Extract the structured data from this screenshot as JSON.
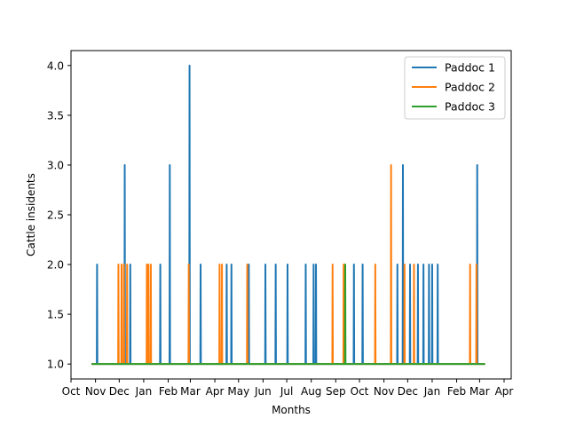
{
  "chart_data": {
    "type": "line",
    "title": "",
    "xlabel": "Months",
    "ylabel": "Cattle insidents",
    "ylim": [
      0.85,
      4.15
    ],
    "xlim": [
      "2018-10-01",
      "2020-04-10"
    ],
    "baseline": 1.0,
    "x_start": "2018-10-27",
    "x_end": "2020-03-08",
    "yticks": [
      1.0,
      1.5,
      2.0,
      2.5,
      3.0,
      3.5,
      4.0
    ],
    "ytick_labels": [
      "1.0",
      "1.5",
      "2.0",
      "2.5",
      "3.0",
      "3.5",
      "4.0"
    ],
    "xticks": [
      {
        "date": "2018-10-01",
        "label": "Oct"
      },
      {
        "date": "2018-11-01",
        "label": "Nov"
      },
      {
        "date": "2018-12-01",
        "label": "Dec"
      },
      {
        "date": "2019-01-01",
        "label": "Jan"
      },
      {
        "date": "2019-02-01",
        "label": "Feb"
      },
      {
        "date": "2019-03-01",
        "label": "Mar"
      },
      {
        "date": "2019-04-01",
        "label": "Apr"
      },
      {
        "date": "2019-05-01",
        "label": "May"
      },
      {
        "date": "2019-06-01",
        "label": "Jun"
      },
      {
        "date": "2019-07-01",
        "label": "Jul"
      },
      {
        "date": "2019-08-01",
        "label": "Aug"
      },
      {
        "date": "2019-09-01",
        "label": "Sep"
      },
      {
        "date": "2019-10-01",
        "label": "Oct"
      },
      {
        "date": "2019-11-01",
        "label": "Nov"
      },
      {
        "date": "2019-12-01",
        "label": "Dec"
      },
      {
        "date": "2020-01-01",
        "label": "Jan"
      },
      {
        "date": "2020-02-01",
        "label": "Feb"
      },
      {
        "date": "2020-03-01",
        "label": "Mar"
      },
      {
        "date": "2020-04-01",
        "label": "Apr"
      }
    ],
    "legend_position": "top-right",
    "grid": false,
    "series": [
      {
        "name": "Paddoc 1",
        "color": "#1f77b4",
        "peaks": [
          {
            "x": "2018-11-03",
            "y": 2
          },
          {
            "x": "2018-12-08",
            "y": 3
          },
          {
            "x": "2018-12-15",
            "y": 2
          },
          {
            "x": "2019-01-22",
            "y": 2
          },
          {
            "x": "2019-02-03",
            "y": 3
          },
          {
            "x": "2019-02-28",
            "y": 4
          },
          {
            "x": "2019-03-14",
            "y": 2
          },
          {
            "x": "2019-04-16",
            "y": 2
          },
          {
            "x": "2019-04-22",
            "y": 2
          },
          {
            "x": "2019-05-14",
            "y": 2
          },
          {
            "x": "2019-06-04",
            "y": 2
          },
          {
            "x": "2019-06-17",
            "y": 2
          },
          {
            "x": "2019-07-02",
            "y": 2
          },
          {
            "x": "2019-07-25",
            "y": 2
          },
          {
            "x": "2019-08-04",
            "y": 2
          },
          {
            "x": "2019-08-07",
            "y": 2
          },
          {
            "x": "2019-09-24",
            "y": 2
          },
          {
            "x": "2019-10-05",
            "y": 2
          },
          {
            "x": "2019-11-18",
            "y": 2
          },
          {
            "x": "2019-11-25",
            "y": 3
          },
          {
            "x": "2019-12-04",
            "y": 2
          },
          {
            "x": "2019-12-14",
            "y": 2
          },
          {
            "x": "2019-12-21",
            "y": 2
          },
          {
            "x": "2019-12-28",
            "y": 2
          },
          {
            "x": "2020-01-01",
            "y": 2
          },
          {
            "x": "2020-01-08",
            "y": 2
          },
          {
            "x": "2020-02-27",
            "y": 3
          }
        ]
      },
      {
        "name": "Paddoc 2",
        "color": "#ff7f0e",
        "peaks": [
          {
            "x": "2018-11-30",
            "y": 2
          },
          {
            "x": "2018-12-04",
            "y": 2
          },
          {
            "x": "2018-12-07",
            "y": 2
          },
          {
            "x": "2018-12-11",
            "y": 2
          },
          {
            "x": "2019-01-05",
            "y": 2
          },
          {
            "x": "2019-01-07",
            "y": 2
          },
          {
            "x": "2019-01-10",
            "y": 2
          },
          {
            "x": "2019-02-27",
            "y": 2
          },
          {
            "x": "2019-04-07",
            "y": 2
          },
          {
            "x": "2019-04-10",
            "y": 2
          },
          {
            "x": "2019-05-12",
            "y": 2
          },
          {
            "x": "2019-08-28",
            "y": 2
          },
          {
            "x": "2019-09-11",
            "y": 2
          },
          {
            "x": "2019-10-21",
            "y": 2
          },
          {
            "x": "2019-11-10",
            "y": 3
          },
          {
            "x": "2019-11-27",
            "y": 2
          },
          {
            "x": "2019-12-09",
            "y": 2
          },
          {
            "x": "2020-02-18",
            "y": 2
          },
          {
            "x": "2020-02-26",
            "y": 2
          }
        ]
      },
      {
        "name": "Paddoc 3",
        "color": "#2ca02c",
        "peaks": [
          {
            "x": "2019-09-13",
            "y": 2
          }
        ]
      }
    ]
  }
}
